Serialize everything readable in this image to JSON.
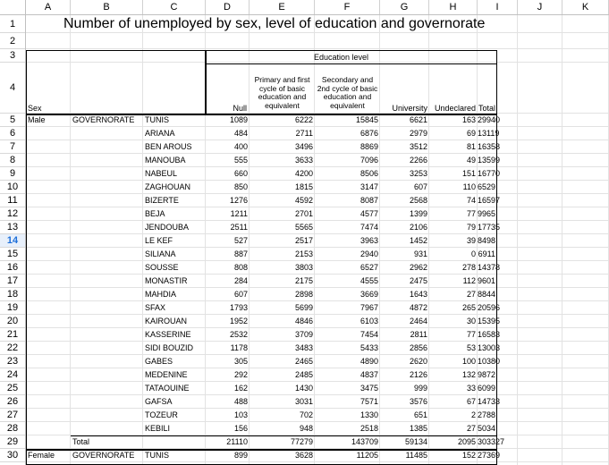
{
  "spreadsheet": {
    "columns": [
      "A",
      "B",
      "C",
      "D",
      "E",
      "F",
      "G",
      "H",
      "I",
      "J",
      "K"
    ],
    "rows": [
      1,
      2,
      3,
      4,
      5,
      6,
      7,
      8,
      9,
      10,
      11,
      12,
      13,
      14,
      15,
      16,
      17,
      18,
      19,
      20,
      21,
      22,
      23,
      24,
      25,
      26,
      27,
      28,
      29,
      30
    ],
    "active_row": 14,
    "title": "Number of unemployed by sex, level of education and governorate",
    "education_level_label": "Education level",
    "headers": {
      "sex": "Sex",
      "null": "Null",
      "primary": "Primary and first cycle of basic education and equivalent",
      "secondary": "Secondary and 2nd cycle of basic education and equivalent",
      "university": "University",
      "undeclared": "Undeclared",
      "total": "Total"
    },
    "male_label": "Male",
    "female_label": "Female",
    "governorate_label": "GOVERNORATE",
    "total_label": "Total",
    "male_rows": [
      {
        "gov": "TUNIS",
        "null": "1089",
        "primary": "6222",
        "secondary": "15845",
        "university": "6621",
        "undeclared": "163",
        "total": "29940"
      },
      {
        "gov": "ARIANA",
        "null": "484",
        "primary": "2711",
        "secondary": "6876",
        "university": "2979",
        "undeclared": "69",
        "total": "13119"
      },
      {
        "gov": "BEN AROUS",
        "null": "400",
        "primary": "3496",
        "secondary": "8869",
        "university": "3512",
        "undeclared": "81",
        "total": "16358"
      },
      {
        "gov": "MANOUBA",
        "null": "555",
        "primary": "3633",
        "secondary": "7096",
        "university": "2266",
        "undeclared": "49",
        "total": "13599"
      },
      {
        "gov": "NABEUL",
        "null": "660",
        "primary": "4200",
        "secondary": "8506",
        "university": "3253",
        "undeclared": "151",
        "total": "16770"
      },
      {
        "gov": "ZAGHOUAN",
        "null": "850",
        "primary": "1815",
        "secondary": "3147",
        "university": "607",
        "undeclared": "110",
        "total": "6529"
      },
      {
        "gov": "BIZERTE",
        "null": "1276",
        "primary": "4592",
        "secondary": "8087",
        "university": "2568",
        "undeclared": "74",
        "total": "16597"
      },
      {
        "gov": "BEJA",
        "null": "1211",
        "primary": "2701",
        "secondary": "4577",
        "university": "1399",
        "undeclared": "77",
        "total": "9965"
      },
      {
        "gov": "JENDOUBA",
        "null": "2511",
        "primary": "5565",
        "secondary": "7474",
        "university": "2106",
        "undeclared": "79",
        "total": "17735"
      },
      {
        "gov": "LE KEF",
        "null": "527",
        "primary": "2517",
        "secondary": "3963",
        "university": "1452",
        "undeclared": "39",
        "total": "8498"
      },
      {
        "gov": "SILIANA",
        "null": "887",
        "primary": "2153",
        "secondary": "2940",
        "university": "931",
        "undeclared": "0",
        "total": "6911"
      },
      {
        "gov": "SOUSSE",
        "null": "808",
        "primary": "3803",
        "secondary": "6527",
        "university": "2962",
        "undeclared": "278",
        "total": "14378"
      },
      {
        "gov": "MONASTIR",
        "null": "284",
        "primary": "2175",
        "secondary": "4555",
        "university": "2475",
        "undeclared": "112",
        "total": "9601"
      },
      {
        "gov": "MAHDIA",
        "null": "607",
        "primary": "2898",
        "secondary": "3669",
        "university": "1643",
        "undeclared": "27",
        "total": "8844"
      },
      {
        "gov": "SFAX",
        "null": "1793",
        "primary": "5699",
        "secondary": "7967",
        "university": "4872",
        "undeclared": "265",
        "total": "20596"
      },
      {
        "gov": "KAIROUAN",
        "null": "1952",
        "primary": "4846",
        "secondary": "6103",
        "university": "2464",
        "undeclared": "30",
        "total": "15395"
      },
      {
        "gov": "KASSERINE",
        "null": "2532",
        "primary": "3709",
        "secondary": "7454",
        "university": "2811",
        "undeclared": "77",
        "total": "16583"
      },
      {
        "gov": "SIDI BOUZID",
        "null": "1178",
        "primary": "3483",
        "secondary": "5433",
        "university": "2856",
        "undeclared": "53",
        "total": "13003"
      },
      {
        "gov": "GABES",
        "null": "305",
        "primary": "2465",
        "secondary": "4890",
        "university": "2620",
        "undeclared": "100",
        "total": "10380"
      },
      {
        "gov": "MEDENINE",
        "null": "292",
        "primary": "2485",
        "secondary": "4837",
        "university": "2126",
        "undeclared": "132",
        "total": "9872"
      },
      {
        "gov": "TATAOUINE",
        "null": "162",
        "primary": "1430",
        "secondary": "3475",
        "university": "999",
        "undeclared": "33",
        "total": "6099"
      },
      {
        "gov": "GAFSA",
        "null": "488",
        "primary": "3031",
        "secondary": "7571",
        "university": "3576",
        "undeclared": "67",
        "total": "14733"
      },
      {
        "gov": "TOZEUR",
        "null": "103",
        "primary": "702",
        "secondary": "1330",
        "university": "651",
        "undeclared": "2",
        "total": "2788"
      },
      {
        "gov": "KEBILI",
        "null": "156",
        "primary": "948",
        "secondary": "2518",
        "university": "1385",
        "undeclared": "27",
        "total": "5034"
      }
    ],
    "male_total": {
      "null": "21110",
      "primary": "77279",
      "secondary": "143709",
      "university": "59134",
      "undeclared": "2095",
      "total": "303327"
    },
    "female_first": {
      "gov": "TUNIS",
      "null": "899",
      "primary": "3628",
      "secondary": "11205",
      "university": "11485",
      "undeclared": "152",
      "total": "27369"
    }
  }
}
